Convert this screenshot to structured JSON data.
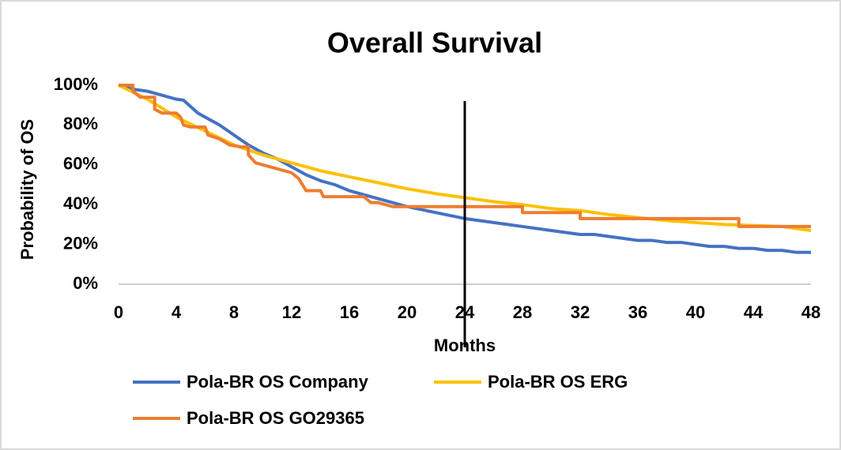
{
  "chart_data": {
    "type": "line",
    "title": "Overall Survival",
    "x_label": "Months",
    "y_label": "Probability of OS",
    "xlim": [
      0,
      48
    ],
    "xticks": [
      0,
      4,
      8,
      12,
      16,
      20,
      24,
      28,
      32,
      36,
      40,
      44,
      48
    ],
    "ylim": [
      0,
      100
    ],
    "yticks": [
      {
        "value": 0,
        "label": "0%"
      },
      {
        "value": 20,
        "label": "20%"
      },
      {
        "value": 40,
        "label": "40%"
      },
      {
        "value": 60,
        "label": "60%"
      },
      {
        "value": 80,
        "label": "80%"
      },
      {
        "value": 100,
        "label": "100%"
      }
    ],
    "grid": false,
    "marker_x": 24,
    "series": [
      {
        "name": "Pola-BR OS Company",
        "color": "#4472c4",
        "x": [
          0,
          1,
          2,
          3,
          4,
          4.5,
          5.5,
          7,
          8,
          9,
          10,
          11,
          12,
          13,
          14,
          15,
          16,
          18,
          20,
          22,
          24,
          26,
          28,
          30,
          32,
          33,
          35,
          36,
          37,
          38,
          39,
          40,
          41,
          42,
          43,
          44,
          45,
          46,
          47,
          48
        ],
        "values": [
          100,
          98,
          97,
          95,
          93,
          92.5,
          86,
          80,
          75,
          70,
          66,
          63,
          59,
          55,
          52,
          50,
          47,
          43,
          39,
          36,
          33,
          31,
          29,
          27,
          25,
          25,
          23,
          22,
          22,
          21,
          21,
          20,
          19,
          19,
          18,
          18,
          17,
          17,
          16,
          16
        ]
      },
      {
        "name": "Pola-BR OS ERG",
        "color": "#ffc000",
        "x": [
          0,
          2,
          4,
          6,
          8,
          10,
          12,
          14,
          16,
          18,
          20,
          22,
          24,
          26,
          28,
          30,
          32,
          34,
          36,
          38,
          40,
          42,
          44,
          46,
          48
        ],
        "values": [
          100,
          93,
          84,
          77,
          70,
          65,
          61,
          57,
          54,
          51,
          48,
          45.5,
          43.5,
          41.5,
          40,
          38,
          37,
          35,
          33.5,
          32,
          31,
          30,
          29.5,
          29,
          27
        ]
      },
      {
        "name": "Pola-BR OS GO29365",
        "color": "#ed7d31",
        "x": [
          0,
          1,
          1,
          1.5,
          2.5,
          2.5,
          3,
          4,
          4.3,
          4.5,
          5,
          6,
          6.2,
          7,
          7.7,
          8.5,
          9,
          9,
          9.5,
          10.5,
          11,
          12,
          12.5,
          13,
          14,
          14.2,
          17,
          17.5,
          18,
          19,
          21,
          28,
          28,
          32,
          32,
          43,
          43,
          48
        ],
        "values": [
          100,
          100,
          97,
          94,
          94,
          88,
          86,
          86,
          84,
          80,
          79,
          79,
          75,
          73,
          70,
          69,
          69,
          65,
          61,
          59,
          58,
          56,
          53,
          47,
          47,
          44,
          44,
          41,
          41,
          39,
          39,
          39,
          36,
          36,
          33,
          33,
          29,
          29
        ]
      }
    ]
  }
}
